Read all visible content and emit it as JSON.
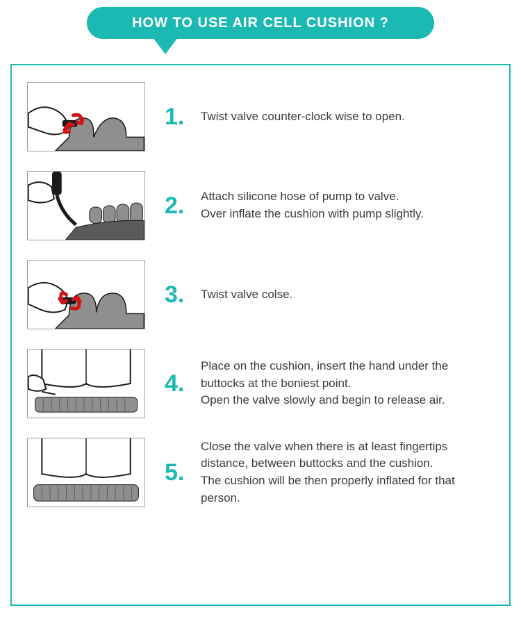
{
  "header": {
    "title": "HOW TO USE AIR CELL CUSHION  ?",
    "pill_color": "#1cb9b3",
    "text_color": "#ffffff",
    "border_color": "#1cb9b3"
  },
  "typography": {
    "step_number_color": "#1cb9b3",
    "step_number_fontsize": 34,
    "step_text_color": "#3a3a3a",
    "step_text_fontsize": 17
  },
  "steps": [
    {
      "num": "1.",
      "text": "Twist valve counter-clock wise to open."
    },
    {
      "num": "2.",
      "text": "Attach silicone hose of pump to valve.\nOver inflate the cushion with pump slightly."
    },
    {
      "num": "3.",
      "text": "Twist valve colse."
    },
    {
      "num": "4.",
      "text": "Place on the cushion, insert the hand under the buttocks at the boniest point.\nOpen the valve slowly and begin to release air."
    },
    {
      "num": "5.",
      "text": "Close the valve when there is at least fingertips distance, between buttocks and the cushion.\nThe cushion will be then properly inflated for that person."
    }
  ],
  "illustration_palette": {
    "cushion_fill": "#8f8f8f",
    "cushion_dark": "#5a5a5a",
    "outline": "#1a1a1a",
    "arrow_red": "#d11314",
    "skin": "#ffffff"
  }
}
